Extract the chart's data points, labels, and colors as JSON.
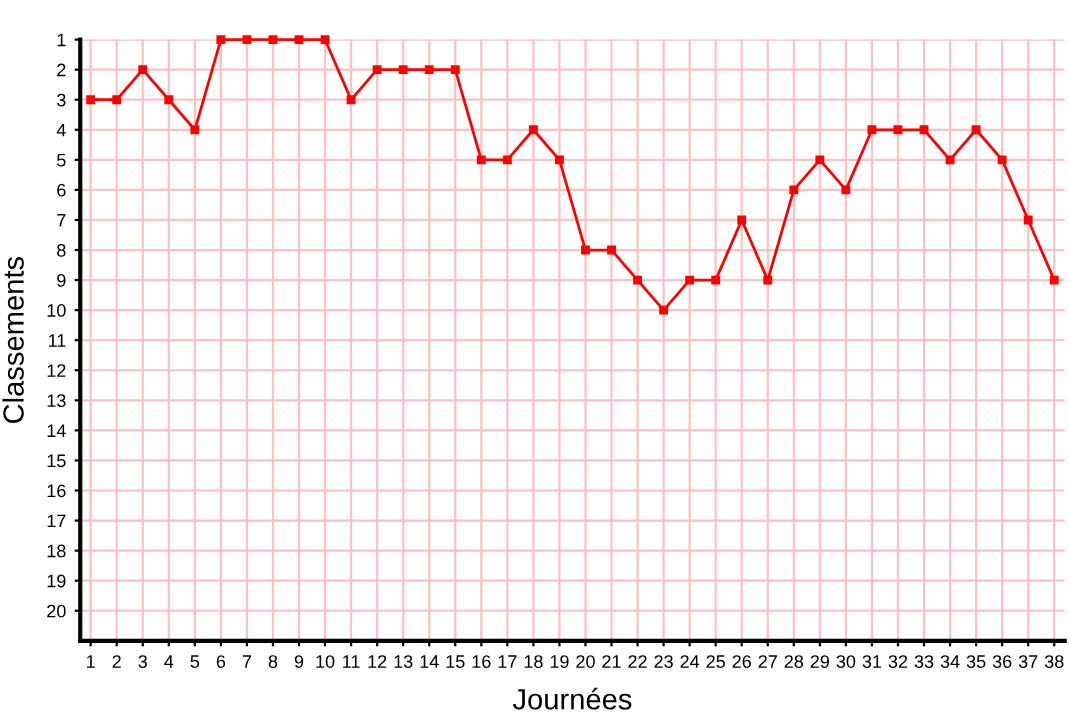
{
  "chart_data": {
    "type": "line",
    "xlabel": "Journées",
    "ylabel": "Classements",
    "x": [
      1,
      2,
      3,
      4,
      5,
      6,
      7,
      8,
      9,
      10,
      11,
      12,
      13,
      14,
      15,
      16,
      17,
      18,
      19,
      20,
      21,
      22,
      23,
      24,
      25,
      26,
      27,
      28,
      29,
      30,
      31,
      32,
      33,
      34,
      35,
      36,
      37,
      38
    ],
    "series": [
      {
        "color": "#ff0000",
        "values": [
          3,
          3,
          2,
          3,
          4,
          1,
          1,
          1,
          1,
          1,
          3,
          2,
          2,
          2,
          2,
          5,
          5,
          4,
          5,
          8,
          8,
          9,
          10,
          9,
          9,
          7,
          9,
          6,
          5,
          6,
          4,
          4,
          4,
          5,
          4,
          5,
          7,
          9
        ]
      }
    ],
    "xlim": [
      0.6,
      38.4
    ],
    "ylim": [
      21,
      1
    ],
    "xticks": [
      1,
      2,
      3,
      4,
      5,
      6,
      7,
      8,
      9,
      10,
      11,
      12,
      13,
      14,
      15,
      16,
      17,
      18,
      19,
      20,
      21,
      22,
      23,
      24,
      25,
      26,
      27,
      28,
      29,
      30,
      31,
      32,
      33,
      34,
      35,
      36,
      37,
      38
    ],
    "yticks": [
      1,
      2,
      3,
      4,
      5,
      6,
      7,
      8,
      9,
      10,
      11,
      12,
      13,
      14,
      15,
      16,
      17,
      18,
      19,
      20
    ],
    "grid": true,
    "marker": "square",
    "line_style": "solid"
  }
}
